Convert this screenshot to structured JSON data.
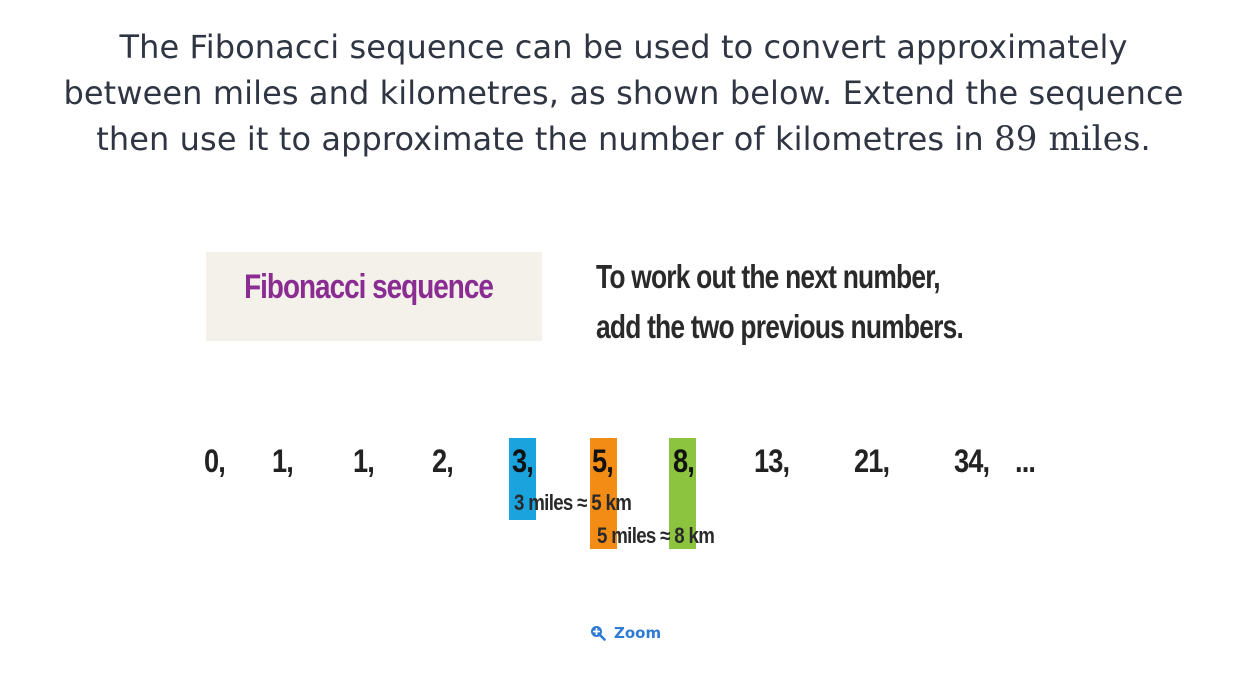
{
  "question": {
    "line1": "The Fibonacci sequence can be used to convert approximately",
    "line2": "between miles and kilometres, as shown below. Extend the sequence",
    "line3_prefix": "then use it to approximate the number of kilometres in ",
    "line3_math": "89 miles",
    "line3_suffix": "."
  },
  "figure": {
    "title": "Fibonacci sequence",
    "rule_line1": "To work out the next number,",
    "rule_line2": "add the two previous numbers.",
    "sequence": [
      "0,",
      "1,",
      "1,",
      "2,",
      "3,",
      "5,",
      "8,",
      "13,",
      "21,",
      "34,",
      "..."
    ],
    "conversion1": "3 miles ≈ 5 km",
    "conversion2": "5 miles ≈ 8 km",
    "colors": {
      "title": "#8a2c92",
      "blue": "#1aa3dc",
      "orange": "#f28c14",
      "green": "#8cc43f"
    }
  },
  "zoom": {
    "label": "Zoom",
    "icon": "zoom-in-icon"
  }
}
